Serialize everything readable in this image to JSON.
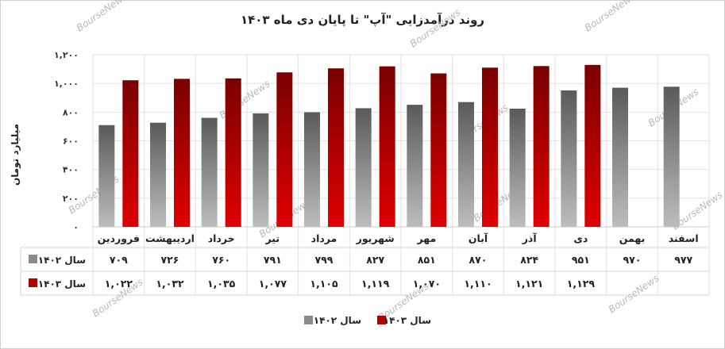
{
  "chart_data": {
    "type": "bar",
    "title": "روند درآمدزایی \"آپ\" تا پایان دی ماه ۱۴۰۳",
    "ylabel": "میلیارد تومان",
    "xlabel": "",
    "ylim": [
      0,
      1200
    ],
    "yticks": [
      "۰",
      "۲۰۰",
      "۴۰۰",
      "۶۰۰",
      "۸۰۰",
      "۱,۰۰۰",
      "۱,۲۰۰"
    ],
    "categories": [
      "فروردین",
      "اردیبهشت",
      "خرداد",
      "تیر",
      "مرداد",
      "شهریور",
      "مهر",
      "آبان",
      "آذر",
      "دی",
      "بهمن",
      "اسفند"
    ],
    "series": [
      {
        "name": "سال ۱۴۰۲",
        "color_top": "#5a5a5a",
        "color_bottom": "#bdbdbd",
        "values": [
          709,
          726,
          760,
          791,
          799,
          827,
          851,
          870,
          824,
          951,
          970,
          977
        ],
        "labels": [
          "۷۰۹",
          "۷۲۶",
          "۷۶۰",
          "۷۹۱",
          "۷۹۹",
          "۸۲۷",
          "۸۵۱",
          "۸۷۰",
          "۸۲۴",
          "۹۵۱",
          "۹۷۰",
          "۹۷۷"
        ]
      },
      {
        "name": "سال ۱۴۰۳",
        "color_top": "#7a0000",
        "color_bottom": "#e00000",
        "values": [
          1022,
          1032,
          1035,
          1077,
          1105,
          1119,
          1070,
          1110,
          1121,
          1129,
          null,
          null
        ],
        "labels": [
          "۱,۰۲۲",
          "۱,۰۳۲",
          "۱,۰۳۵",
          "۱,۰۷۷",
          "۱,۱۰۵",
          "۱,۱۱۹",
          "۱,۰۷۰",
          "۱,۱۱۰",
          "۱,۱۲۱",
          "۱,۱۲۹",
          "",
          ""
        ]
      }
    ],
    "grid": true,
    "legend_position": "bottom"
  },
  "watermark": "BourseNews"
}
